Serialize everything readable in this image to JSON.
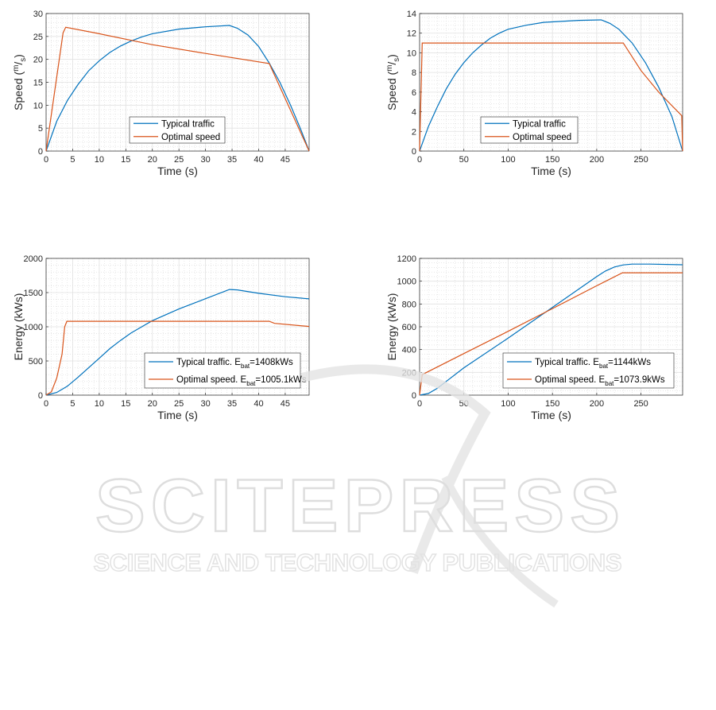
{
  "watermark": {
    "title": "SCITEPRESS",
    "subtitle": "SCIENCE AND TECHNOLOGY PUBLICATIONS"
  },
  "chart_data": [
    {
      "type": "line",
      "xlabel": "Time (s)",
      "ylabel": {
        "pre": "Speed (",
        "sup": "m",
        "mid": "/",
        "sub": "s",
        "post": ")"
      },
      "xlim": [
        0,
        49.5
      ],
      "ylim": [
        0,
        30
      ],
      "xticks": [
        0,
        5,
        10,
        15,
        20,
        25,
        30,
        35,
        40,
        45
      ],
      "yticks": [
        0,
        5,
        10,
        15,
        20,
        25,
        30
      ],
      "grid": true,
      "legend_position": "bottom-center",
      "series": [
        {
          "name": "Typical traffic",
          "label": {
            "pre": "Typical traffic"
          },
          "color": "#0072bd",
          "x": [
            0,
            2,
            4,
            6,
            8,
            10,
            12,
            14,
            16,
            18,
            20,
            25,
            30,
            34.5,
            36,
            38,
            40,
            42,
            44,
            46,
            48,
            49.5
          ],
          "y": [
            0,
            6.5,
            11,
            14.5,
            17.5,
            19.7,
            21.5,
            22.9,
            24,
            24.9,
            25.6,
            26.6,
            27.1,
            27.4,
            26.8,
            25.3,
            22.8,
            19.2,
            15,
            10,
            4.5,
            0
          ]
        },
        {
          "name": "Optimal speed",
          "label": {
            "pre": "Optimal speed"
          },
          "color": "#d95319",
          "x": [
            0,
            3.2,
            3.7,
            10,
            20,
            30,
            42,
            49.5
          ],
          "y": [
            0,
            25.8,
            27,
            25.6,
            23.2,
            21.3,
            19.1,
            0
          ]
        }
      ]
    },
    {
      "type": "line",
      "xlabel": "Time (s)",
      "ylabel": {
        "pre": "Speed (",
        "sup": "m",
        "mid": "/",
        "sub": "s",
        "post": ")"
      },
      "xlim": [
        0,
        297
      ],
      "ylim": [
        0,
        14
      ],
      "xticks": [
        0,
        50,
        100,
        150,
        200,
        250
      ],
      "yticks": [
        0,
        2,
        4,
        6,
        8,
        10,
        12,
        14
      ],
      "grid": true,
      "legend_position": "bottom-center",
      "series": [
        {
          "name": "Typical traffic",
          "label": {
            "pre": "Typical traffic"
          },
          "color": "#0072bd",
          "x": [
            0,
            10,
            20,
            30,
            40,
            50,
            60,
            70,
            80,
            90,
            100,
            120,
            140,
            160,
            180,
            205,
            215,
            225,
            240,
            255,
            270,
            285,
            297
          ],
          "y": [
            0,
            2.5,
            4.5,
            6.3,
            7.8,
            9,
            10,
            10.8,
            11.5,
            12,
            12.4,
            12.8,
            13.1,
            13.2,
            13.3,
            13.35,
            13,
            12.4,
            11,
            9,
            6.5,
            3.5,
            0
          ]
        },
        {
          "name": "Optimal speed",
          "label": {
            "pre": "Optimal speed"
          },
          "color": "#d95319",
          "x": [
            0,
            3,
            230,
            250,
            270,
            296,
            297
          ],
          "y": [
            0,
            11,
            11,
            8.2,
            6,
            3.6,
            0
          ]
        }
      ]
    },
    {
      "type": "line",
      "xlabel": "Time (s)",
      "ylabel": {
        "pre": "Energy (kWs)"
      },
      "xlim": [
        0,
        49.5
      ],
      "ylim": [
        0,
        2000
      ],
      "xticks": [
        0,
        5,
        10,
        15,
        20,
        25,
        30,
        35,
        40,
        45
      ],
      "yticks": [
        0,
        500,
        1000,
        1500,
        2000
      ],
      "grid": true,
      "legend_position": "bottom-right",
      "series": [
        {
          "name": "Typical traffic. Ebat=1408kWs",
          "label": {
            "pre": "Typical traffic. E",
            "sub": "bat",
            "post": "=1408kWs"
          },
          "color": "#0072bd",
          "x": [
            0,
            2,
            4,
            6,
            8,
            10,
            12,
            14,
            16,
            18,
            20,
            25,
            30,
            34.5,
            36,
            40,
            45,
            49.5
          ],
          "y": [
            0,
            40,
            130,
            260,
            400,
            540,
            680,
            800,
            910,
            1000,
            1090,
            1260,
            1410,
            1545,
            1540,
            1490,
            1440,
            1408
          ]
        },
        {
          "name": "Optimal speed. Ebat=1005.1kWs",
          "label": {
            "pre": "Optimal speed. E",
            "sub": "bat",
            "post": "=1005.1kWs"
          },
          "color": "#d95319",
          "x": [
            0,
            1,
            2,
            3,
            3.5,
            3.9,
            42,
            43,
            49.5
          ],
          "y": [
            0,
            50,
            250,
            600,
            1000,
            1080,
            1080,
            1050,
            1005.1
          ]
        }
      ]
    },
    {
      "type": "line",
      "xlabel": "Time (s)",
      "ylabel": {
        "pre": "Energy (kWs)"
      },
      "xlim": [
        0,
        297
      ],
      "ylim": [
        0,
        1200
      ],
      "xticks": [
        0,
        50,
        100,
        150,
        200,
        250
      ],
      "yticks": [
        0,
        200,
        400,
        600,
        800,
        1000,
        1200
      ],
      "grid": true,
      "legend_position": "bottom-right",
      "series": [
        {
          "name": "Typical traffic. Ebat=1144kWs",
          "label": {
            "pre": "Typical traffic. E",
            "sub": "bat",
            "post": "=1144kWs"
          },
          "color": "#0072bd",
          "x": [
            0,
            10,
            20,
            30,
            50,
            100,
            150,
            200,
            210,
            220,
            230,
            240,
            260,
            297
          ],
          "y": [
            0,
            15,
            60,
            120,
            240,
            500,
            770,
            1040,
            1090,
            1125,
            1143,
            1150,
            1150,
            1144
          ]
        },
        {
          "name": "Optimal speed. Ebat=1073.9kWs",
          "label": {
            "pre": "Optimal speed. E",
            "sub": "bat",
            "post": "=1073.9kWs"
          },
          "color": "#d95319",
          "x": [
            0,
            3,
            50,
            100,
            150,
            200,
            229,
            297
          ],
          "y": [
            0,
            180,
            365,
            560,
            760,
            960,
            1074,
            1073.9
          ]
        }
      ]
    }
  ]
}
